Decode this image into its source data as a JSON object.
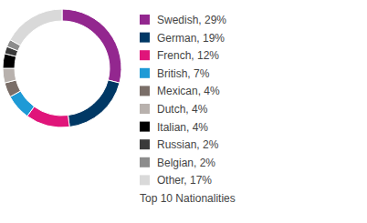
{
  "chart_data": {
    "type": "donut",
    "title": "Top 10 Nationalities",
    "categories": [
      "Swedish, 29%",
      "German, 19%",
      "French, 12%",
      "British, 7%",
      "Mexican, 4%",
      "Dutch, 4%",
      "Italian, 4%",
      "Russian, 2%",
      "Belgian, 2%",
      "Other, 17%"
    ],
    "values": [
      29,
      19,
      12,
      7,
      4,
      4,
      4,
      2,
      2,
      17
    ],
    "colors": [
      "#93278f",
      "#003865",
      "#e0157a",
      "#1e9ad6",
      "#7a6e68",
      "#b8b1ad",
      "#000000",
      "#3a3a3a",
      "#8c8c8c",
      "#d9d9d9"
    ],
    "legend": "right"
  }
}
